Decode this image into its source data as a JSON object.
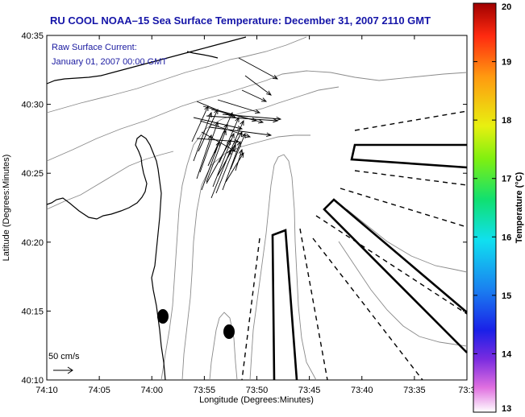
{
  "title": "RU COOL  NOAA–15  Sea Surface Temperature:  December 31, 2007 2110 GMT",
  "current_label_line1": "Raw Surface Current:",
  "current_label_line2": "January 01, 2007 00:00 GMT",
  "scale_label": "50 cm/s",
  "colors": {
    "title": "#1515a8",
    "note": "#1a1aa0",
    "contour": "#8a8a8a",
    "coast": "#000000",
    "vector": "#000000"
  },
  "chart_data": {
    "type": "map",
    "xlabel": "Longitude (Degrees:Minutes)",
    "ylabel": "Latitude (Degrees:Minutes)",
    "x_ticks": [
      "74:10",
      "74:05",
      "74:00",
      "73:55",
      "73:50",
      "73:45",
      "73:40",
      "73:35",
      "73:3"
    ],
    "y_ticks": [
      "40:10",
      "40:15",
      "40:20",
      "40:25",
      "40:30",
      "40:35"
    ],
    "xlim_minutes_west": [
      4450,
      4410
    ],
    "ylim_minutes_north": [
      2410,
      2435
    ],
    "colorbar": {
      "label": "Temperature (°C)",
      "ticks": [
        "13",
        "14",
        "15",
        "16",
        "17",
        "18",
        "19",
        "20"
      ],
      "range": [
        13,
        20
      ]
    },
    "current_vectors_note": "surface current vectors drawn near 40:27–40:33 N, 73:51–73:56 W",
    "markers": [
      {
        "lon": "73:58.8",
        "lat": "40:14.6"
      },
      {
        "lon": "73:52.2",
        "lat": "40:13.5"
      }
    ]
  }
}
